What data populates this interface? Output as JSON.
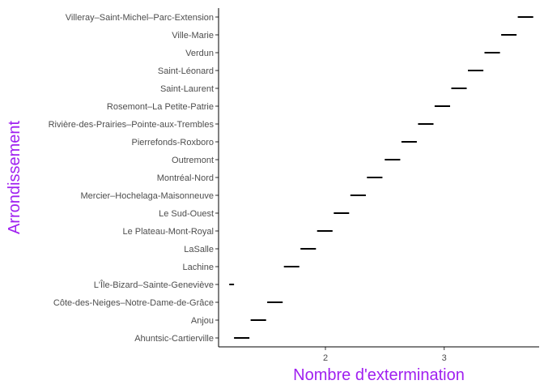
{
  "chart_data": {
    "type": "crossbar",
    "xlabel": "Nombre d'extermination",
    "ylabel": "Arrondissement",
    "title_color": "#A020F0",
    "mark_color": "#000000",
    "xlim": [
      1.1,
      3.8
    ],
    "x_ticks": [
      2,
      3
    ],
    "grid": false,
    "categories": [
      "Ahuntsic-Cartierville",
      "Anjou",
      "Côte-des-Neiges–Notre-Dame-de-Grâce",
      "L'Île-Bizard–Sainte-Geneviève",
      "Lachine",
      "LaSalle",
      "Le Plateau-Mont-Royal",
      "Le Sud-Ouest",
      "Mercier–Hochelaga-Maisonneuve",
      "Montréal-Nord",
      "Outremont",
      "Pierrefonds-Roxboro",
      "Rivière-des-Prairies–Pointe-aux-Trembles",
      "Rosemont–La Petite-Patrie",
      "Saint-Laurent",
      "Saint-Léonard",
      "Verdun",
      "Ville-Marie",
      "Villeray–Saint-Michel–Parc-Extension"
    ],
    "ranges": [
      [
        1.23,
        1.36
      ],
      [
        1.37,
        1.5
      ],
      [
        1.51,
        1.64
      ],
      [
        1.19,
        1.23
      ],
      [
        1.65,
        1.78
      ],
      [
        1.79,
        1.92
      ],
      [
        1.93,
        2.06
      ],
      [
        2.07,
        2.2
      ],
      [
        2.21,
        2.34
      ],
      [
        2.35,
        2.48
      ],
      [
        2.5,
        2.63
      ],
      [
        2.64,
        2.77
      ],
      [
        2.78,
        2.91
      ],
      [
        2.92,
        3.05
      ],
      [
        3.06,
        3.19
      ],
      [
        3.2,
        3.33
      ],
      [
        3.34,
        3.47
      ],
      [
        3.48,
        3.61
      ],
      [
        3.62,
        3.75
      ]
    ]
  }
}
